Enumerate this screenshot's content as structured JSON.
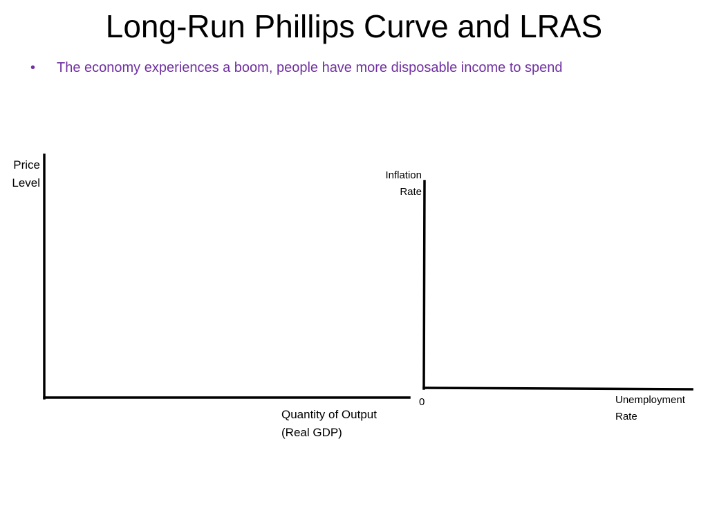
{
  "slide": {
    "title": "Long-Run Phillips Curve and LRAS",
    "bullets": [
      {
        "marker": "•",
        "text": "The economy experiences a boom, people have more disposable income to spend",
        "color": "#7030a0"
      }
    ]
  },
  "left_graph": {
    "y_axis_label": [
      "Price",
      "Level"
    ],
    "x_axis_label": [
      "Quantity of Output",
      "(Real GDP)"
    ]
  },
  "right_graph": {
    "y_axis_label": [
      "Inflation",
      "Rate"
    ],
    "origin_label": "0",
    "x_axis_label": [
      "Unemployment",
      "Rate"
    ]
  },
  "colors": {
    "bullet_text": "#7030a0",
    "axis_line": "#000000",
    "title": "#000000"
  }
}
